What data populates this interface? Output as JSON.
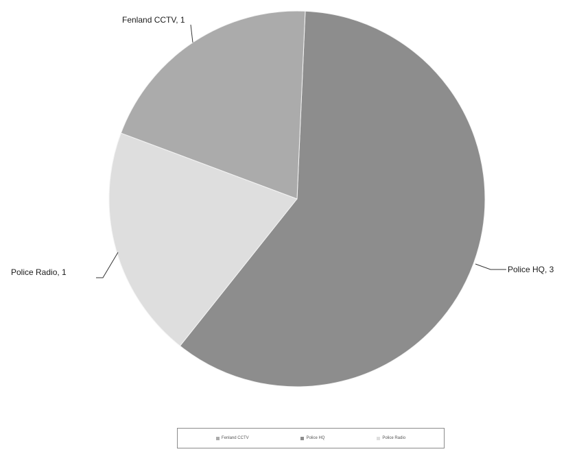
{
  "chart_data": {
    "type": "pie",
    "title": "",
    "slices": [
      {
        "label": "Fenland CCTV",
        "value": 1,
        "color": "#ababab",
        "data_label": "Fenland CCTV, 1"
      },
      {
        "label": "Police HQ",
        "value": 3,
        "color": "#8d8d8d",
        "data_label": "Police HQ, 3"
      },
      {
        "label": "Police Radio",
        "value": 1,
        "color": "#dedede",
        "data_label": "Police Radio, 1"
      }
    ],
    "legend": {
      "placement": "bottom",
      "entries": [
        "Fenland CCTV",
        "Police HQ",
        "Police Radio"
      ]
    }
  }
}
